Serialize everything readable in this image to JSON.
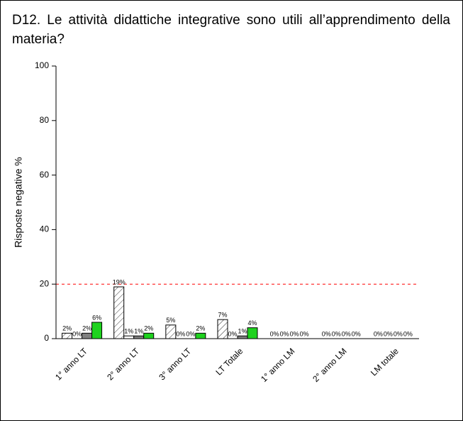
{
  "question": {
    "title": "D12. Le attività didattiche integrative sono utili all’apprendimento della materia?"
  },
  "chart_data": {
    "type": "bar",
    "categories": [
      "1° anno LT",
      "2° anno LT",
      "3° anno LT",
      "LT Totale",
      "1° anno LM",
      "2° anno LM",
      "LM totale"
    ],
    "series": [
      {
        "color": "#ffffff",
        "pattern": "hatch",
        "values": [
          2,
          19,
          5,
          7,
          0,
          0,
          0
        ],
        "value_labels": [
          "2%",
          "19%",
          "5%",
          "7%",
          "0%",
          "0%",
          "0%"
        ]
      },
      {
        "color": "#ffffff",
        "values": [
          0,
          1,
          0,
          0,
          0,
          0,
          0
        ],
        "value_labels": [
          "0%",
          "1%",
          "0%",
          "0%",
          "0%",
          "0%",
          "0%"
        ]
      },
      {
        "color": "#808080",
        "values": [
          2,
          1,
          0,
          1,
          0,
          0,
          0
        ],
        "value_labels": [
          "2%",
          "1%",
          "0%",
          "1%",
          "0%",
          "0%",
          "0%"
        ]
      },
      {
        "color": "#1ed21e",
        "values": [
          6,
          2,
          2,
          4,
          0,
          0,
          0
        ],
        "value_labels": [
          "6%",
          "2%",
          "2%",
          "4%",
          "0%",
          "0%",
          "0%"
        ]
      }
    ],
    "y_label": "Risposte negative %",
    "ylim": [
      0,
      100
    ],
    "yticks": [
      0,
      20,
      40,
      60,
      80,
      100
    ],
    "reference_line": {
      "value": 20,
      "color": "#ff0000",
      "dashed": true
    }
  }
}
